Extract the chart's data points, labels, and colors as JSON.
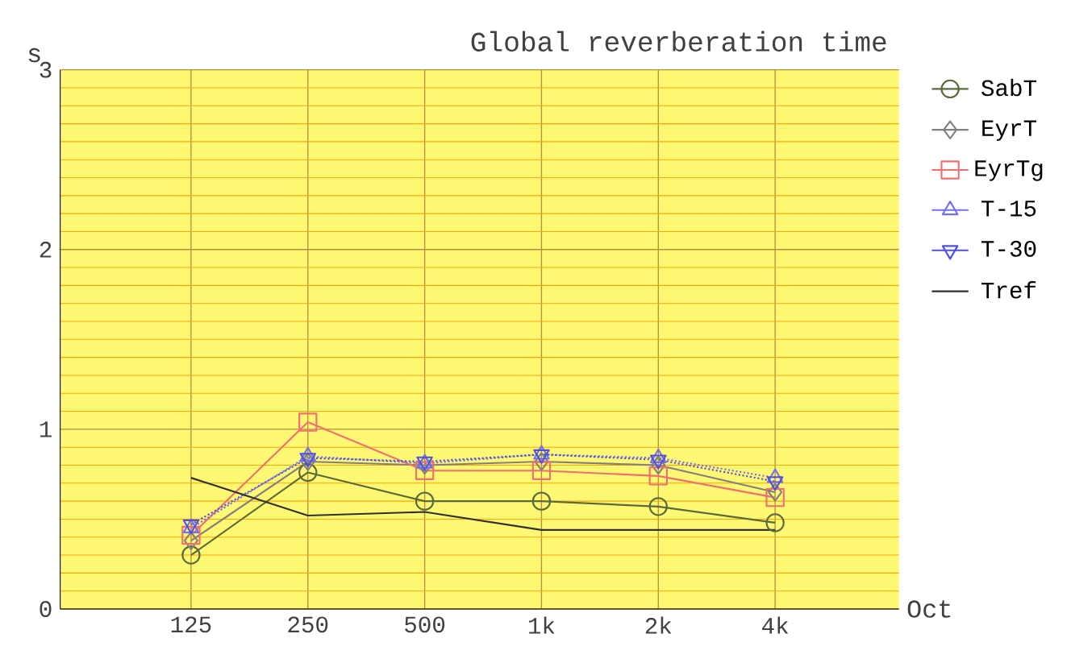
{
  "chart_data": {
    "type": "line",
    "title": "Global reverberation time",
    "xlabel": "Oct",
    "ylabel": "s",
    "categories": [
      "125",
      "250",
      "500",
      "1k",
      "2k",
      "4k"
    ],
    "ylim": [
      0,
      3
    ],
    "yticks": [
      0,
      {
        "value": 0.1,
        "label": null
      },
      {
        "value": 0.2,
        "label": null
      },
      {
        "value": 0.3,
        "label": null
      },
      {
        "value": 0.4,
        "label": null
      },
      {
        "value": 0.5,
        "label": null
      },
      {
        "value": 0.6,
        "label": null
      },
      {
        "value": 0.7,
        "label": null
      },
      {
        "value": 0.8,
        "label": null
      },
      {
        "value": 0.9,
        "label": null
      },
      1,
      {
        "value": 1.1,
        "label": null
      },
      {
        "value": 1.2,
        "label": null
      },
      {
        "value": 1.3,
        "label": null
      },
      {
        "value": 1.4,
        "label": null
      },
      {
        "value": 1.5,
        "label": null
      },
      {
        "value": 1.6,
        "label": null
      },
      {
        "value": 1.7,
        "label": null
      },
      {
        "value": 1.8,
        "label": null
      },
      {
        "value": 1.9,
        "label": null
      },
      2,
      {
        "value": 2.1,
        "label": null
      },
      {
        "value": 2.2,
        "label": null
      },
      {
        "value": 2.3,
        "label": null
      },
      {
        "value": 2.4,
        "label": null
      },
      {
        "value": 2.5,
        "label": null
      },
      {
        "value": 2.6,
        "label": null
      },
      {
        "value": 2.7,
        "label": null
      },
      {
        "value": 2.8,
        "label": null
      },
      {
        "value": 2.9,
        "label": null
      },
      3
    ],
    "grid": true,
    "legend": "right",
    "series": [
      {
        "name": "SabT",
        "color": "#5a6a3a",
        "marker": "circle",
        "line_style": "solid",
        "values": [
          0.3,
          0.76,
          0.6,
          0.6,
          0.57,
          0.48
        ]
      },
      {
        "name": "EyrT",
        "color": "#808080",
        "marker": "diamond",
        "line_style": "solid",
        "values": [
          0.38,
          0.82,
          0.8,
          0.82,
          0.8,
          0.65
        ]
      },
      {
        "name": "EyrTg",
        "color": "#f07070",
        "marker": "square",
        "line_style": "solid",
        "values": [
          0.41,
          1.04,
          0.77,
          0.77,
          0.74,
          0.62
        ]
      },
      {
        "name": "T-15",
        "color": "#7070f0",
        "marker": "triangle",
        "line_style": "dotted",
        "values": [
          0.45,
          0.85,
          0.81,
          0.86,
          0.84,
          0.73
        ]
      },
      {
        "name": "T-30",
        "color": "#5050e0",
        "marker": "triangle-down",
        "line_style": "dotted",
        "values": [
          0.47,
          0.84,
          0.82,
          0.86,
          0.83,
          0.71
        ]
      },
      {
        "name": "Tref",
        "color": "#303030",
        "marker": "none",
        "line_style": "solid",
        "values": [
          0.73,
          0.52,
          0.54,
          0.44,
          0.44,
          0.44
        ]
      }
    ]
  }
}
